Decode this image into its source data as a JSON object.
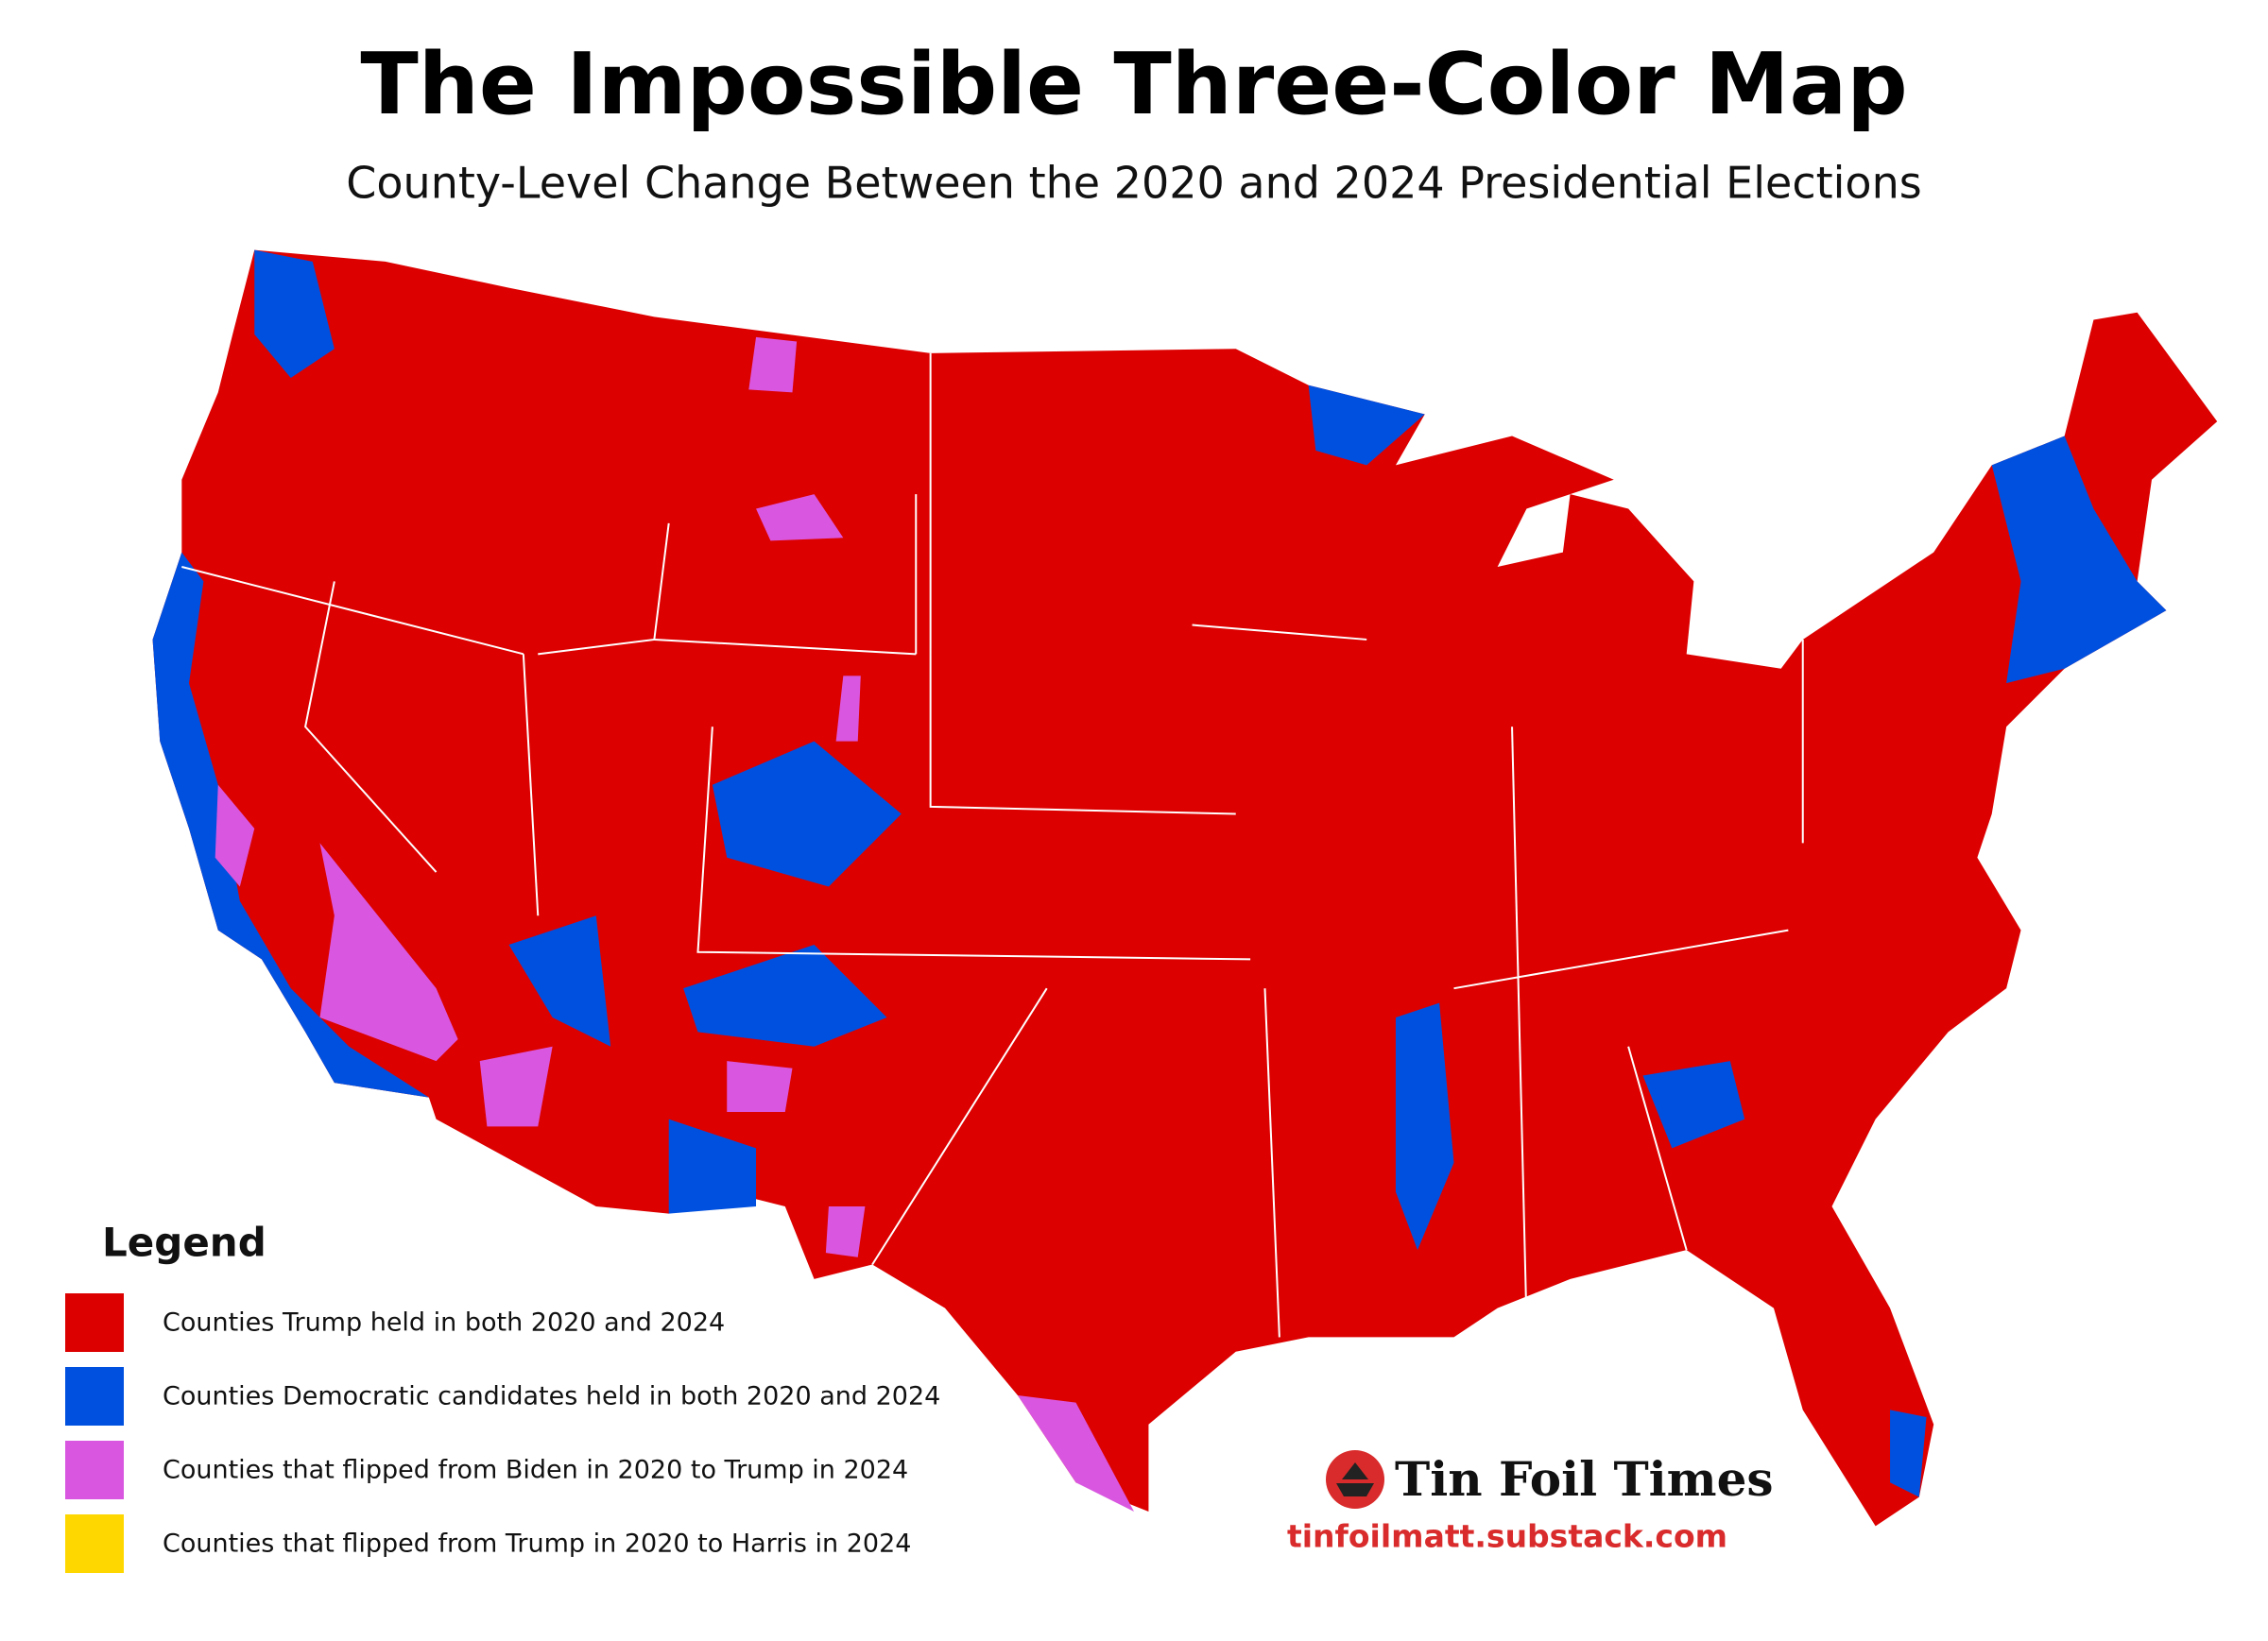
{
  "header": {
    "title": "The Impossible Three-Color Map",
    "subtitle": "County-Level Change Between the 2020 and 2024 Presidential Elections"
  },
  "legend": {
    "title": "Legend",
    "items": [
      {
        "label": "Counties Trump held in both 2020 and 2024",
        "color": "#dd0000"
      },
      {
        "label": "Counties Democratic candidates held in both 2020 and 2024",
        "color": "#0050e0"
      },
      {
        "label": "Counties that flipped from Biden in 2020 to Trump in 2024",
        "color": "#d957e0"
      },
      {
        "label": "Counties that flipped from Trump in 2020 to Harris in 2024",
        "color": "#ffd700"
      }
    ]
  },
  "branding": {
    "name": "Tin Foil Times",
    "url": "tinfoilmatt.substack.com"
  }
}
